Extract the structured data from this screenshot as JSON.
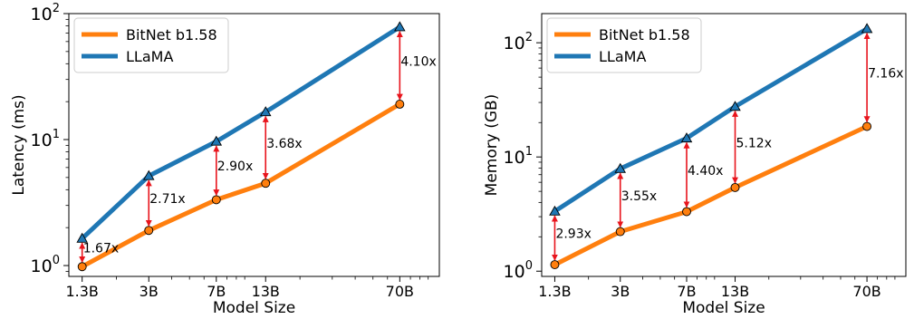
{
  "chart_data": [
    {
      "type": "line",
      "title": "",
      "xlabel": "Model Size",
      "ylabel": "Latency (ms)",
      "y_scale": "log",
      "ylim": [
        0.82,
        100
      ],
      "y_ticks": [
        {
          "value": 1,
          "label_base": "10",
          "label_exp": "0"
        },
        {
          "value": 10,
          "label_base": "10",
          "label_exp": "1"
        },
        {
          "value": 100,
          "label_base": "10",
          "label_exp": "2"
        }
      ],
      "x_scale": "log",
      "xlim": [
        1.1,
        115
      ],
      "categories": [
        "1.3B",
        "3B",
        "7B",
        "13B",
        "70B"
      ],
      "x": [
        1.3,
        3,
        7,
        13,
        70
      ],
      "legend_position": "top-left",
      "series": [
        {
          "name": "BitNet b1.58",
          "color": "#ff7f0e",
          "marker": "circle",
          "values": [
            0.98,
            1.9,
            3.33,
            4.5,
            19.1
          ]
        },
        {
          "name": "LLaMA",
          "color": "#1f77b4",
          "marker": "triangle",
          "values": [
            1.64,
            5.15,
            9.66,
            16.56,
            78.3
          ]
        }
      ],
      "ratios": [
        "1.67x",
        "2.71x",
        "2.90x",
        "3.68x",
        "4.10x"
      ]
    },
    {
      "type": "line",
      "title": "",
      "xlabel": "Model Size",
      "ylabel": "Memory (GB)",
      "y_scale": "log",
      "ylim": [
        0.9,
        180
      ],
      "y_ticks": [
        {
          "value": 1,
          "label_base": "10",
          "label_exp": "0"
        },
        {
          "value": 10,
          "label_base": "10",
          "label_exp": "1"
        },
        {
          "value": 100,
          "label_base": "10",
          "label_exp": "2"
        }
      ],
      "x_scale": "log",
      "xlim": [
        1.1,
        115
      ],
      "categories": [
        "1.3B",
        "3B",
        "7B",
        "13B",
        "70B"
      ],
      "x": [
        1.3,
        3,
        7,
        13,
        70
      ],
      "legend_position": "top-left",
      "series": [
        {
          "name": "BitNet b1.58",
          "color": "#ff7f0e",
          "marker": "circle",
          "values": [
            1.14,
            2.22,
            3.32,
            5.4,
            18.5
          ]
        },
        {
          "name": "LLaMA",
          "color": "#1f77b4",
          "marker": "triangle",
          "values": [
            3.34,
            7.89,
            14.6,
            27.6,
            132.5
          ]
        }
      ],
      "ratios": [
        "2.93x",
        "3.55x",
        "4.40x",
        "5.12x",
        "7.16x"
      ]
    }
  ]
}
